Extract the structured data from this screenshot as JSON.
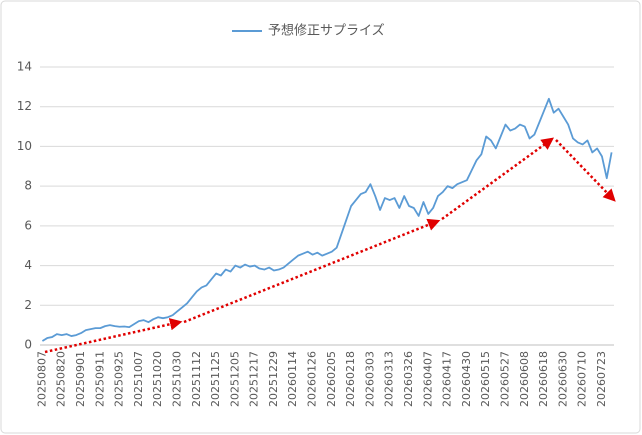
{
  "chart_data": {
    "type": "line",
    "categories": [
      "20250807",
      null,
      null,
      null,
      "20250820",
      null,
      null,
      null,
      "20250901",
      null,
      null,
      null,
      "20250911",
      null,
      null,
      null,
      "20250925",
      null,
      null,
      null,
      "20251007",
      null,
      null,
      null,
      "20251020",
      null,
      null,
      null,
      "20251030",
      null,
      null,
      null,
      "20251112",
      null,
      null,
      null,
      "20251125",
      null,
      null,
      null,
      "20251205",
      null,
      null,
      null,
      "20251217",
      null,
      null,
      null,
      "20251229",
      null,
      null,
      null,
      "20260114",
      null,
      null,
      null,
      "20260126",
      null,
      null,
      null,
      "20260205",
      null,
      null,
      null,
      "20260218",
      null,
      null,
      null,
      "20260303",
      null,
      null,
      null,
      "20260313",
      null,
      null,
      null,
      "20260326",
      null,
      null,
      null,
      "20260407",
      null,
      null,
      null,
      "20260417",
      null,
      null,
      null,
      "20260430",
      null,
      null,
      null,
      "20260515",
      null,
      null,
      null,
      "20260527",
      null,
      null,
      null,
      "20260608",
      null,
      null,
      null,
      "20260618",
      null,
      null,
      null,
      "20260630",
      null,
      null,
      null,
      "20260710",
      null,
      null,
      null,
      "20260723",
      null,
      null
    ],
    "series": [
      {
        "name": "予想修正サプライズ",
        "color": "#5b9bd5",
        "values": [
          0.2,
          0.35,
          0.4,
          0.55,
          0.5,
          0.55,
          0.45,
          0.5,
          0.6,
          0.75,
          0.8,
          0.85,
          0.85,
          0.95,
          1.0,
          0.95,
          0.92,
          0.93,
          0.9,
          1.05,
          1.2,
          1.25,
          1.15,
          1.3,
          1.4,
          1.35,
          1.4,
          1.5,
          1.7,
          1.9,
          2.1,
          2.4,
          2.7,
          2.9,
          3.0,
          3.3,
          3.6,
          3.5,
          3.8,
          3.7,
          4.0,
          3.9,
          4.05,
          3.95,
          4.0,
          3.85,
          3.8,
          3.9,
          3.75,
          3.8,
          3.9,
          4.1,
          4.3,
          4.5,
          4.6,
          4.7,
          4.55,
          4.65,
          4.5,
          4.6,
          4.7,
          4.9,
          5.6,
          6.3,
          7.0,
          7.3,
          7.6,
          7.7,
          8.1,
          7.5,
          6.8,
          7.4,
          7.3,
          7.4,
          6.9,
          7.5,
          7.0,
          6.9,
          6.5,
          7.2,
          6.6,
          6.9,
          7.5,
          7.7,
          8.0,
          7.9,
          8.1,
          8.2,
          8.3,
          8.8,
          9.3,
          9.6,
          10.5,
          10.3,
          9.9,
          10.5,
          11.1,
          10.8,
          10.9,
          11.1,
          11.0,
          10.4,
          10.6,
          11.2,
          11.8,
          12.4,
          11.7,
          11.9,
          11.5,
          11.1,
          10.4,
          10.2,
          10.1,
          10.3,
          9.7,
          9.9,
          9.5,
          8.4,
          9.7
        ]
      }
    ],
    "ylim": [
      0,
      14
    ],
    "yticks": [
      0,
      2,
      4,
      6,
      8,
      10,
      12,
      14
    ],
    "grid": true,
    "legend": "top"
  }
}
